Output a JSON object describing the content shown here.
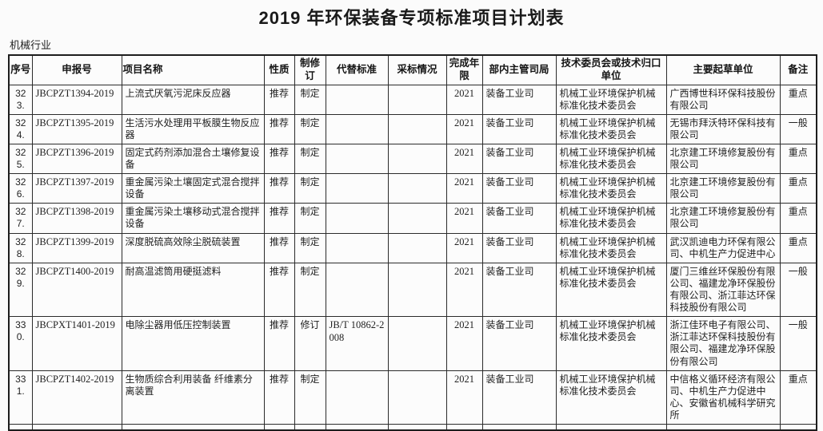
{
  "page": {
    "title": "2019 年环保装备专项标准项目计划表",
    "section_label": "机械行业"
  },
  "colors": {
    "text": "#222222",
    "border": "#2b2b2b",
    "background": "#fbfbfb"
  },
  "table": {
    "headers": [
      "序号",
      "申报号",
      "项目名称",
      "性质",
      "制修订",
      "代替标准",
      "采标情况",
      "完成年限",
      "部内主管司局",
      "技术委员会或技术归口单位",
      "主要起草单位",
      "备注"
    ],
    "column_keys": [
      "no",
      "code",
      "name",
      "nature",
      "rev",
      "replaces",
      "adoption",
      "year",
      "dept",
      "committee",
      "drafters",
      "remark"
    ],
    "rows": [
      {
        "no": "323.",
        "code": "JBCPZT1394-2019",
        "name": "上流式厌氧污泥床反应器",
        "nature": "推荐",
        "rev": "制定",
        "replaces": "",
        "adoption": "",
        "year": "2021",
        "dept": "装备工业司",
        "committee": "机械工业环境保护机械标准化技术委员会",
        "drafters": "广西博世科环保科技股份有限公司",
        "remark": "重点"
      },
      {
        "no": "324.",
        "code": "JBCPZT1395-2019",
        "name": "生活污水处理用平板膜生物反应器",
        "nature": "推荐",
        "rev": "制定",
        "replaces": "",
        "adoption": "",
        "year": "2021",
        "dept": "装备工业司",
        "committee": "机械工业环境保护机械标准化技术委员会",
        "drafters": "无锡市拜沃特环保科技有限公司",
        "remark": "一般"
      },
      {
        "no": "325.",
        "code": "JBCPZT1396-2019",
        "name": "固定式药剂添加混合土壤修复设备",
        "nature": "推荐",
        "rev": "制定",
        "replaces": "",
        "adoption": "",
        "year": "2021",
        "dept": "装备工业司",
        "committee": "机械工业环境保护机械标准化技术委员会",
        "drafters": "北京建工环境修复股份有限公司",
        "remark": "重点"
      },
      {
        "no": "326.",
        "code": "JBCPZT1397-2019",
        "name": "重金属污染土壤固定式混合搅拌设备",
        "nature": "推荐",
        "rev": "制定",
        "replaces": "",
        "adoption": "",
        "year": "2021",
        "dept": "装备工业司",
        "committee": "机械工业环境保护机械标准化技术委员会",
        "drafters": "北京建工环境修复股份有限公司",
        "remark": "重点"
      },
      {
        "no": "327.",
        "code": "JBCPZT1398-2019",
        "name": "重金属污染土壤移动式混合搅拌设备",
        "nature": "推荐",
        "rev": "制定",
        "replaces": "",
        "adoption": "",
        "year": "2021",
        "dept": "装备工业司",
        "committee": "机械工业环境保护机械标准化技术委员会",
        "drafters": "北京建工环境修复股份有限公司",
        "remark": "重点"
      },
      {
        "no": "328.",
        "code": "JBCPZT1399-2019",
        "name": "深度脱硫高效除尘脱硫装置",
        "nature": "推荐",
        "rev": "制定",
        "replaces": "",
        "adoption": "",
        "year": "2021",
        "dept": "装备工业司",
        "committee": "机械工业环境保护机械标准化技术委员会",
        "drafters": "武汉凯迪电力环保有限公司、中机生产力促进中心",
        "remark": "重点"
      },
      {
        "no": "329.",
        "code": "JBCPZT1400-2019",
        "name": "耐高温滤筒用硬挺滤料",
        "nature": "推荐",
        "rev": "制定",
        "replaces": "",
        "adoption": "",
        "year": "2021",
        "dept": "装备工业司",
        "committee": "机械工业环境保护机械标准化技术委员会",
        "drafters": "厦门三维丝环保股份有限公司、福建龙净环保股份有限公司、浙江菲达环保科技股份有限公司",
        "remark": "一般"
      },
      {
        "no": "330.",
        "code": "JBCPXT1401-2019",
        "name": "电除尘器用低压控制装置",
        "nature": "推荐",
        "rev": "修订",
        "replaces": "JB/T 10862-2008",
        "adoption": "",
        "year": "2021",
        "dept": "装备工业司",
        "committee": "机械工业环境保护机械标准化技术委员会",
        "drafters": "浙江佳环电子有限公司、浙江菲达环保科技股份有限公司、福建龙净环保股份有限公司",
        "remark": "一般"
      },
      {
        "no": "331.",
        "code": "JBCPZT1402-2019",
        "name": "生物质综合利用装备 纤维素分离装置",
        "nature": "推荐",
        "rev": "制定",
        "replaces": "",
        "adoption": "",
        "year": "2021",
        "dept": "装备工业司",
        "committee": "机械工业环境保护机械标准化技术委员会",
        "drafters": "中信格义循环经济有限公司、中机生产力促进中心、安徽省机械科学研究所",
        "remark": "重点"
      },
      {
        "partial": true,
        "no": "",
        "code": "",
        "name": "",
        "nature": "",
        "rev": "",
        "replaces": "",
        "adoption": "",
        "year": "",
        "dept": "",
        "committee": "",
        "drafters": "",
        "remark": ""
      }
    ]
  }
}
